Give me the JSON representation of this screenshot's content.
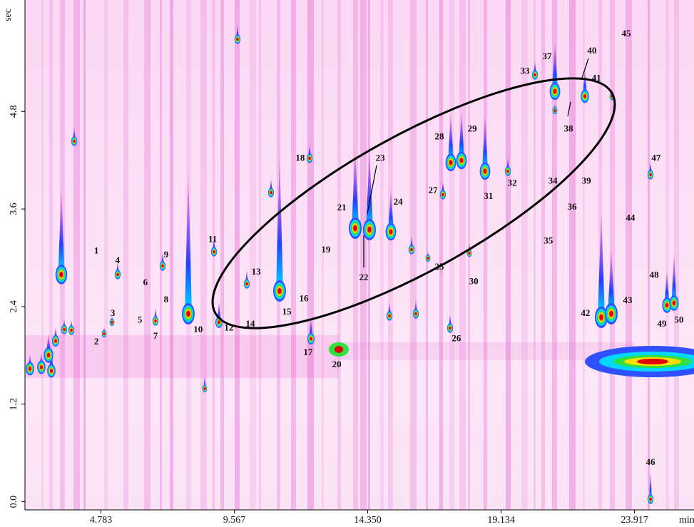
{
  "chart_data": {
    "type": "contour",
    "x_label": "min",
    "y_label": "sec",
    "xlim": [
      2.06,
      26.05
    ],
    "ylim": [
      -0.1,
      6.17
    ],
    "xticks": [
      4.783,
      9.567,
      {
        "value": 14.35,
        "label": "14.350"
      },
      19.134,
      23.917
    ],
    "yticks": [
      {
        "value": 0,
        "label": "0.0"
      },
      1.2,
      2.4,
      3.6,
      4.8
    ],
    "annotations": [
      {
        "text": "1",
        "x": 4.62,
        "y": 3.08
      },
      {
        "text": "2",
        "x": 4.62,
        "y": 1.96
      },
      {
        "text": "3",
        "x": 5.21,
        "y": 2.31
      },
      {
        "text": "4",
        "x": 5.38,
        "y": 2.96
      },
      {
        "text": "5",
        "x": 6.18,
        "y": 2.23
      },
      {
        "text": "6",
        "x": 6.38,
        "y": 2.69
      },
      {
        "text": "7",
        "x": 6.74,
        "y": 2.03
      },
      {
        "text": "8",
        "x": 7.12,
        "y": 2.48
      },
      {
        "text": "9",
        "x": 7.12,
        "y": 3.03
      },
      {
        "text": "10",
        "x": 8.27,
        "y": 2.11
      },
      {
        "text": "11",
        "x": 8.79,
        "y": 3.22
      },
      {
        "text": "12",
        "x": 9.37,
        "y": 2.13
      },
      {
        "text": "13",
        "x": 10.35,
        "y": 2.82
      },
      {
        "text": "14",
        "x": 10.14,
        "y": 2.18
      },
      {
        "text": "15",
        "x": 11.45,
        "y": 2.33
      },
      {
        "text": "16",
        "x": 12.06,
        "y": 2.49
      },
      {
        "text": "17",
        "x": 12.21,
        "y": 1.83
      },
      {
        "text": "18",
        "x": 11.93,
        "y": 4.22
      },
      {
        "text": "19",
        "x": 12.85,
        "y": 3.09
      },
      {
        "text": "20",
        "x": 13.24,
        "y": 1.68
      },
      {
        "text": "21",
        "x": 13.42,
        "y": 3.61
      },
      {
        "text": "22",
        "x": 14.21,
        "y": 2.75
      },
      {
        "text": "23",
        "x": 14.8,
        "y": 4.22
      },
      {
        "text": "24",
        "x": 15.44,
        "y": 3.68
      },
      {
        "text": "25",
        "x": 16.92,
        "y": 2.88
      },
      {
        "text": "26",
        "x": 17.53,
        "y": 2.0
      },
      {
        "text": "27",
        "x": 16.69,
        "y": 3.82
      },
      {
        "text": "28",
        "x": 16.92,
        "y": 4.48
      },
      {
        "text": "29",
        "x": 18.1,
        "y": 4.58
      },
      {
        "text": "30",
        "x": 18.15,
        "y": 2.7
      },
      {
        "text": "31",
        "x": 18.68,
        "y": 3.75
      },
      {
        "text": "32",
        "x": 19.53,
        "y": 3.91
      },
      {
        "text": "33",
        "x": 19.99,
        "y": 5.29
      },
      {
        "text": "34",
        "x": 20.99,
        "y": 3.94
      },
      {
        "text": "35",
        "x": 20.83,
        "y": 3.2
      },
      {
        "text": "36",
        "x": 21.68,
        "y": 3.62
      },
      {
        "text": "37",
        "x": 20.78,
        "y": 5.47
      },
      {
        "text": "38",
        "x": 21.55,
        "y": 4.58
      },
      {
        "text": "39",
        "x": 22.19,
        "y": 3.94
      },
      {
        "text": "40",
        "x": 22.39,
        "y": 5.54
      },
      {
        "text": "41",
        "x": 22.55,
        "y": 5.2
      },
      {
        "text": "42",
        "x": 22.16,
        "y": 2.31
      },
      {
        "text": "43",
        "x": 23.67,
        "y": 2.47
      },
      {
        "text": "44",
        "x": 23.77,
        "y": 3.48
      },
      {
        "text": "45",
        "x": 23.62,
        "y": 5.75
      },
      {
        "text": "46",
        "x": 24.49,
        "y": 0.48
      },
      {
        "text": "47",
        "x": 24.69,
        "y": 4.22
      },
      {
        "text": "48",
        "x": 24.62,
        "y": 2.78
      },
      {
        "text": "49",
        "x": 24.9,
        "y": 2.18
      },
      {
        "text": "50",
        "x": 25.51,
        "y": 2.23
      }
    ]
  }
}
